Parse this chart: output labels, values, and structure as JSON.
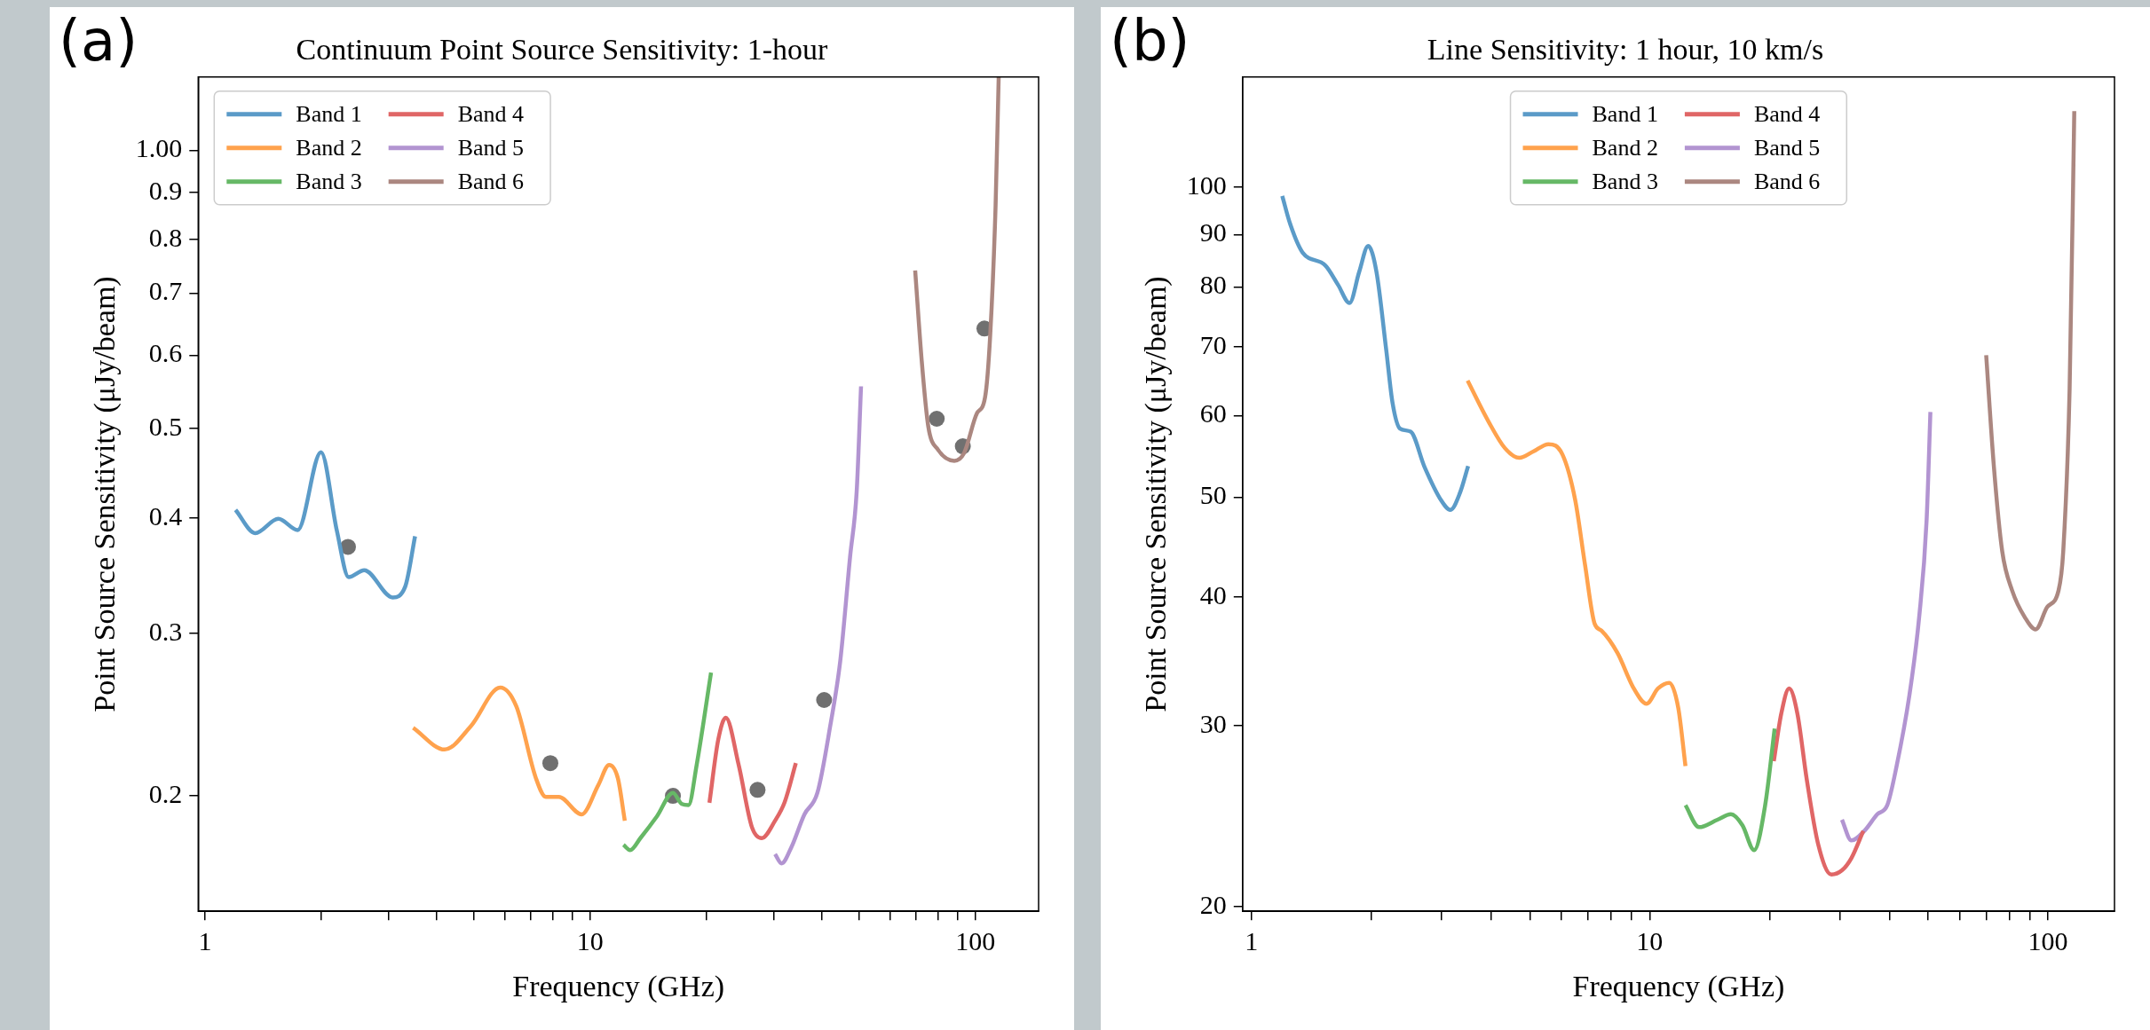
{
  "chart_data": [
    {
      "type": "line",
      "title": "Continuum Point Source Sensitivity: 1-hour",
      "xlabel": "Frequency (GHz)",
      "ylabel": "Point Source Sensitivity (μJy/beam)",
      "annotations": [
        "(a)"
      ],
      "log": "xy",
      "grid": false,
      "legend": "top left",
      "xlim": [
        0.96,
        146
      ],
      "ylim": [
        0.15,
        1.2
      ],
      "xticks": [
        1,
        {
          "value": 2,
          "label": null
        },
        {
          "value": 3,
          "label": null
        },
        {
          "value": 4,
          "label": null
        },
        {
          "value": 5,
          "label": null
        },
        {
          "value": 6,
          "label": null
        },
        {
          "value": 7,
          "label": null
        },
        {
          "value": 8,
          "label": null
        },
        {
          "value": 9,
          "label": null
        },
        10,
        {
          "value": 20,
          "label": null
        },
        {
          "value": 30,
          "label": null
        },
        {
          "value": 40,
          "label": null
        },
        {
          "value": 50,
          "label": null
        },
        {
          "value": 60,
          "label": null
        },
        {
          "value": 70,
          "label": null
        },
        {
          "value": 80,
          "label": null
        },
        {
          "value": 90,
          "label": null
        },
        100
      ],
      "yticks": [
        0.2,
        0.3,
        0.4,
        0.5,
        0.6,
        0.7,
        0.8,
        0.9,
        {
          "value": 1,
          "label": "1.00"
        }
      ],
      "series": [
        {
          "name": "Band 1",
          "color": "#5b9bc8",
          "x": [
            1.2,
            1.35,
            1.55,
            1.74,
            2.0,
            2.2,
            2.36,
            2.59,
            3.07,
            3.31,
            3.51
          ],
          "values": [
            0.408,
            0.385,
            0.399,
            0.388,
            0.471,
            0.387,
            0.345,
            0.351,
            0.328,
            0.337,
            0.382
          ]
        },
        {
          "name": "Band 2",
          "color": "#ffa24d",
          "x": [
            3.47,
            4.19,
            4.9,
            5.84,
            6.43,
            7.23,
            7.67,
            8.29,
            9.5,
            10.5,
            11.2,
            11.8,
            12.3
          ],
          "values": [
            0.237,
            0.2245,
            0.238,
            0.262,
            0.25,
            0.209,
            0.1995,
            0.1995,
            0.191,
            0.2055,
            0.216,
            0.209,
            0.188
          ]
        },
        {
          "name": "Band 3",
          "color": "#66b866",
          "x": [
            12.2,
            12.7,
            13.5,
            14.9,
            16.4,
            17.3,
            18.0,
            18.9,
            20.6
          ],
          "values": [
            0.177,
            0.1747,
            0.18,
            0.19,
            0.2015,
            0.196,
            0.1955,
            0.216,
            0.272
          ]
        },
        {
          "name": "Band 4",
          "color": "#e06666",
          "x": [
            20.4,
            21.5,
            22.5,
            24.3,
            26.3,
            27.9,
            30.2,
            32.0,
            34.2
          ],
          "values": [
            0.1966,
            0.23,
            0.243,
            0.216,
            0.185,
            0.18,
            0.188,
            0.197,
            0.217
          ]
        },
        {
          "name": "Band 5",
          "color": "#b294d1",
          "x": [
            30.2,
            31.4,
            33.3,
            36.0,
            38.9,
            42.0,
            44.6,
            47.3,
            49.2,
            50.5
          ],
          "values": [
            0.173,
            0.169,
            0.176,
            0.191,
            0.2015,
            0.238,
            0.28,
            0.363,
            0.427,
            0.555
          ]
        },
        {
          "name": "Band 6",
          "color": "#ab8780",
          "x": [
            69.8,
            72.6,
            75.5,
            80.0,
            88.2,
            93.5,
            101,
            106,
            109.3,
            112.9,
            115
          ],
          "values": [
            0.741,
            0.591,
            0.502,
            0.474,
            0.461,
            0.47,
            0.519,
            0.54,
            0.63,
            0.872,
            1.2
          ]
        },
        {
          "type": "scatter",
          "color": "#707070",
          "marker": "circle",
          "x": [
            2.35,
            7.88,
            16.4,
            27.2,
            40.5,
            79.4,
            92.8,
            105.6
          ],
          "values": [
            0.372,
            0.217,
            0.2,
            0.203,
            0.254,
            0.512,
            0.478,
            0.641
          ]
        }
      ]
    },
    {
      "type": "line",
      "title": "Line Sensitivity: 1 hour, 10 km/s",
      "xlabel": "Frequency (GHz)",
      "ylabel": "Point Source Sensitivity (μJy/beam)",
      "annotations": [
        "(b)"
      ],
      "log": "xy",
      "grid": false,
      "legend": "top",
      "xlim": [
        0.95,
        147
      ],
      "ylim": [
        19.8,
        128
      ],
      "xticks": [
        1,
        {
          "value": 2,
          "label": null
        },
        {
          "value": 3,
          "label": null
        },
        {
          "value": 4,
          "label": null
        },
        {
          "value": 5,
          "label": null
        },
        {
          "value": 6,
          "label": null
        },
        {
          "value": 7,
          "label": null
        },
        {
          "value": 8,
          "label": null
        },
        {
          "value": 9,
          "label": null
        },
        10,
        {
          "value": 20,
          "label": null
        },
        {
          "value": 30,
          "label": null
        },
        {
          "value": 40,
          "label": null
        },
        {
          "value": 50,
          "label": null
        },
        {
          "value": 60,
          "label": null
        },
        {
          "value": 70,
          "label": null
        },
        {
          "value": 80,
          "label": null
        },
        {
          "value": 90,
          "label": null
        },
        100
      ],
      "yticks": [
        20,
        30,
        40,
        50,
        60,
        70,
        80,
        90,
        100
      ],
      "series": [
        {
          "name": "Band 1",
          "color": "#5b9bc8",
          "x": [
            1.195,
            1.249,
            1.345,
            1.532,
            1.65,
            1.763,
            1.865,
            1.964,
            2.06,
            2.18,
            2.26,
            2.36,
            2.51,
            2.72,
            2.99,
            3.16,
            3.34,
            3.5
          ],
          "values": [
            98.1,
            92.3,
            86.4,
            84.0,
            80.4,
            77.2,
            82.8,
            87.7,
            82.8,
            69.5,
            61.8,
            58.3,
            57.9,
            53.5,
            49.7,
            48.6,
            50.5,
            53.6
          ]
        },
        {
          "name": "Band 2",
          "color": "#ffa24d",
          "x": [
            3.49,
            3.94,
            4.33,
            4.71,
            5.11,
            5.57,
            6.04,
            6.5,
            6.88,
            7.27,
            7.57,
            8.3,
            9.12,
            9.82,
            10.5,
            11.2,
            11.8,
            12.3
          ],
          "values": [
            64.9,
            59.2,
            55.8,
            54.6,
            55.4,
            56.3,
            55.0,
            49.7,
            43.0,
            37.7,
            37.1,
            35.3,
            32.6,
            31.5,
            32.6,
            33.0,
            31.2,
            27.4
          ]
        },
        {
          "name": "Band 3",
          "color": "#66b866",
          "x": [
            12.3,
            13.3,
            14.8,
            16.0,
            17.1,
            18.3,
            19.5,
            20.6
          ],
          "values": [
            25.1,
            23.9,
            24.3,
            24.6,
            24.0,
            22.7,
            25.1,
            29.8
          ]
        },
        {
          "name": "Band 4",
          "color": "#e06666",
          "x": [
            20.5,
            21.4,
            22.4,
            23.5,
            24.8,
            26.5,
            28.6,
            30.4,
            32.1,
            34.4
          ],
          "values": [
            27.7,
            30.8,
            32.6,
            30.8,
            26.6,
            23.0,
            21.5,
            21.7,
            22.3,
            23.7
          ]
        },
        {
          "name": "Band 5",
          "color": "#b294d1",
          "x": [
            30.4,
            32.1,
            34.6,
            37.3,
            39.5,
            41.7,
            44.9,
            47.5,
            49.6,
            50.7
          ],
          "values": [
            24.3,
            23.2,
            23.7,
            24.6,
            25.1,
            27.4,
            32.1,
            38.2,
            47.5,
            60.5
          ]
        },
        {
          "name": "Band 6",
          "color": "#ab8780",
          "x": [
            70.0,
            73.2,
            76.8,
            81.3,
            87.6,
            93.2,
            99.6,
            106.4,
            109.3,
            113.4,
            116.5
          ],
          "values": [
            68.7,
            53.5,
            44.3,
            40.6,
            38.2,
            37.2,
            39.1,
            40.6,
            44.3,
            63.7,
            118.6
          ]
        }
      ]
    }
  ]
}
